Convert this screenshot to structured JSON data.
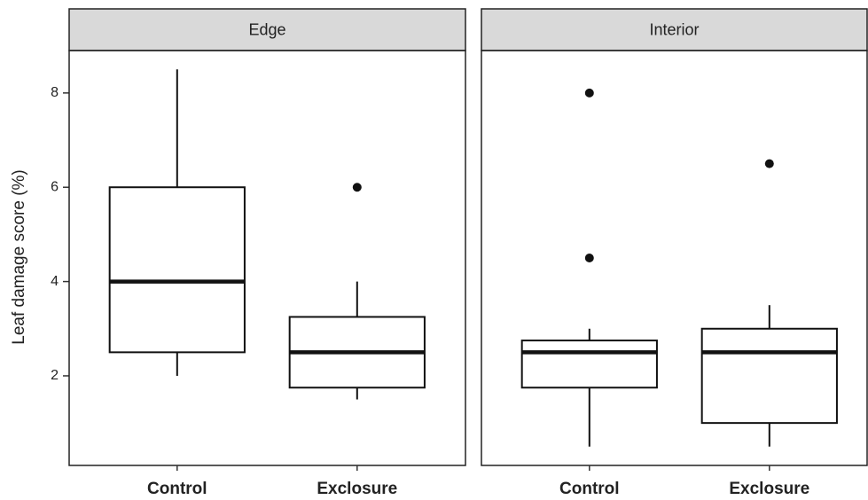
{
  "chart_data": {
    "type": "box",
    "y_label": "Leaf damage score (%)",
    "ylim": [
      0.1,
      8.9
    ],
    "yticks": [
      2,
      4,
      6,
      8
    ],
    "categories": [
      "Control",
      "Exclosure"
    ],
    "panels": [
      {
        "title": "Edge",
        "boxes": [
          {
            "whisker_low": 2,
            "q1": 2.5,
            "median": 4,
            "q3": 6,
            "whisker_high": 8.5,
            "outliers": []
          },
          {
            "whisker_low": 1.5,
            "q1": 1.75,
            "median": 2.5,
            "q3": 3.25,
            "whisker_high": 4,
            "outliers": [
              6
            ]
          }
        ]
      },
      {
        "title": "Interior",
        "boxes": [
          {
            "whisker_low": 0.5,
            "q1": 1.75,
            "median": 2.5,
            "q3": 2.75,
            "whisker_high": 3,
            "outliers": [
              8,
              4.5
            ]
          },
          {
            "whisker_low": 0.5,
            "q1": 1,
            "median": 2.5,
            "q3": 3,
            "whisker_high": 3.5,
            "outliers": [
              6.5
            ]
          }
        ]
      }
    ]
  }
}
